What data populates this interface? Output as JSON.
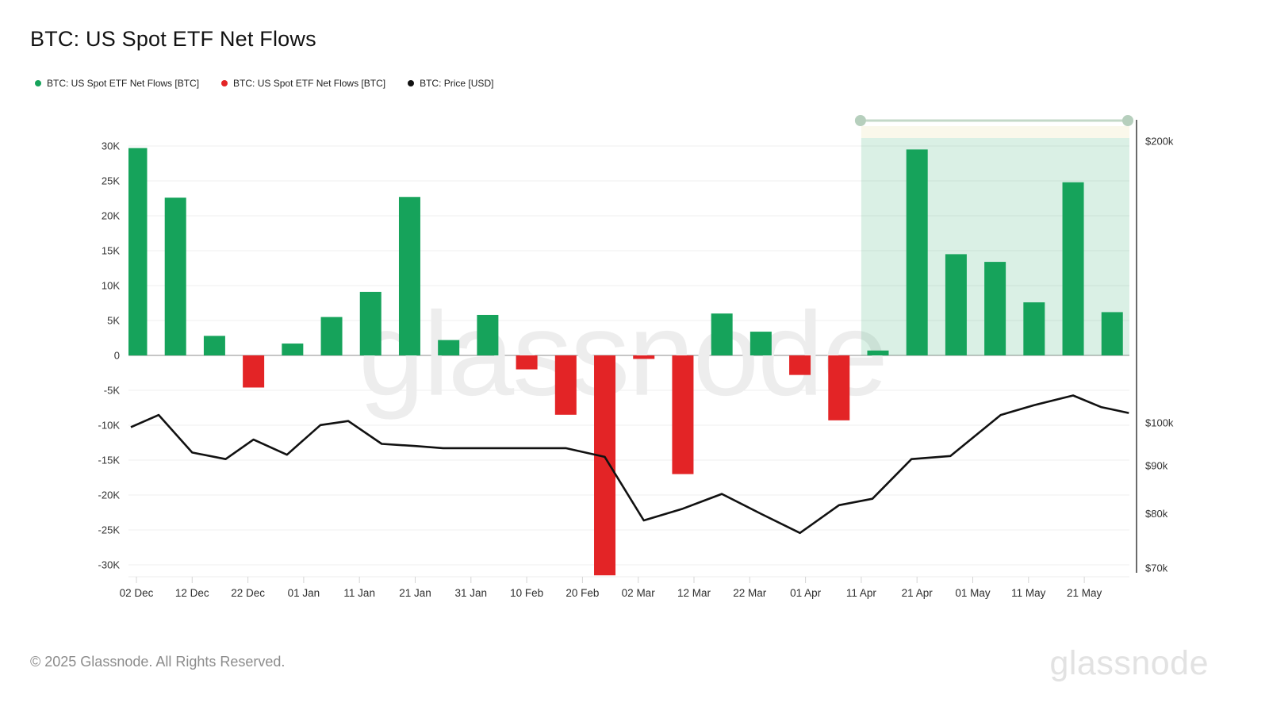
{
  "page": {
    "title": "BTC: US Spot ETF Net Flows",
    "footer": "© 2025 Glassnode. All Rights Reserved.",
    "watermark": "glassnode",
    "brand_logo": "glassnode"
  },
  "legend": {
    "items": [
      {
        "label": "BTC: US Spot ETF Net Flows [BTC]",
        "color": "#16a35b"
      },
      {
        "label": "BTC: US Spot ETF Net Flows [BTC]",
        "color": "#e32426"
      },
      {
        "label": "BTC: Price [USD]",
        "color": "#111111"
      }
    ]
  },
  "chart_data": {
    "type": "bar",
    "title": "BTC: US Spot ETF Net Flows",
    "colors": {
      "positive": "#16a35b",
      "negative": "#e32426",
      "price_line": "#111111",
      "grid": "#efefef",
      "zero_line": "#b3b3b3",
      "axis_text": "#333333",
      "highlight_fill": "#16a35b",
      "slider": "#c3d8c8",
      "slider_handle": "#b6cfbd",
      "cream_band": "#f5f2d8"
    },
    "left_axis": {
      "unit": "BTC",
      "ticks": [
        {
          "v": 30000,
          "label": "30K"
        },
        {
          "v": 25000,
          "label": "25K"
        },
        {
          "v": 20000,
          "label": "20K"
        },
        {
          "v": 15000,
          "label": "15K"
        },
        {
          "v": 10000,
          "label": "10K"
        },
        {
          "v": 5000,
          "label": "5K"
        },
        {
          "v": 0,
          "label": "0"
        },
        {
          "v": -5000,
          "label": "-5K"
        },
        {
          "v": -10000,
          "label": "-10K"
        },
        {
          "v": -15000,
          "label": "-15K"
        },
        {
          "v": -20000,
          "label": "-20K"
        },
        {
          "v": -25000,
          "label": "-25K"
        },
        {
          "v": -30000,
          "label": "-30K"
        }
      ]
    },
    "right_axis": {
      "unit": "USD",
      "scale": "log",
      "ticks": [
        {
          "v": 200,
          "label": "$200k"
        },
        {
          "v": 100,
          "label": "$100k"
        },
        {
          "v": 90,
          "label": "$90k"
        },
        {
          "v": 80,
          "label": "$80k"
        },
        {
          "v": 70,
          "label": "$70k"
        }
      ]
    },
    "x_ticks": [
      {
        "date": "2024-12-02",
        "label": "02 Dec"
      },
      {
        "date": "2024-12-12",
        "label": "12 Dec"
      },
      {
        "date": "2024-12-22",
        "label": "22 Dec"
      },
      {
        "date": "2025-01-01",
        "label": "01 Jan"
      },
      {
        "date": "2025-01-11",
        "label": "11 Jan"
      },
      {
        "date": "2025-01-21",
        "label": "21 Jan"
      },
      {
        "date": "2025-01-31",
        "label": "31 Jan"
      },
      {
        "date": "2025-02-10",
        "label": "10 Feb"
      },
      {
        "date": "2025-02-20",
        "label": "20 Feb"
      },
      {
        "date": "2025-03-02",
        "label": "02 Mar"
      },
      {
        "date": "2025-03-12",
        "label": "12 Mar"
      },
      {
        "date": "2025-03-22",
        "label": "22 Mar"
      },
      {
        "date": "2025-04-01",
        "label": "01 Apr"
      },
      {
        "date": "2025-04-11",
        "label": "11 Apr"
      },
      {
        "date": "2025-04-21",
        "label": "21 Apr"
      },
      {
        "date": "2025-05-01",
        "label": "01 May"
      },
      {
        "date": "2025-05-11",
        "label": "11 May"
      },
      {
        "date": "2025-05-21",
        "label": "21 May"
      }
    ],
    "flows_btc": [
      {
        "date": "2024-12-02",
        "value": 29700
      },
      {
        "date": "2024-12-09",
        "value": 22600
      },
      {
        "date": "2024-12-16",
        "value": 2800
      },
      {
        "date": "2024-12-23",
        "value": -4600
      },
      {
        "date": "2024-12-30",
        "value": 1700
      },
      {
        "date": "2025-01-06",
        "value": 5500
      },
      {
        "date": "2025-01-13",
        "value": 9100
      },
      {
        "date": "2025-01-20",
        "value": 22700
      },
      {
        "date": "2025-01-27",
        "value": 2200
      },
      {
        "date": "2025-02-03",
        "value": 5800
      },
      {
        "date": "2025-02-10",
        "value": -2000
      },
      {
        "date": "2025-02-17",
        "value": -8500
      },
      {
        "date": "2025-02-24",
        "value": -31500
      },
      {
        "date": "2025-03-03",
        "value": -500
      },
      {
        "date": "2025-03-10",
        "value": -17000
      },
      {
        "date": "2025-03-17",
        "value": 6000
      },
      {
        "date": "2025-03-24",
        "value": 3400
      },
      {
        "date": "2025-03-31",
        "value": -2800
      },
      {
        "date": "2025-04-07",
        "value": -9300
      },
      {
        "date": "2025-04-14",
        "value": 700
      },
      {
        "date": "2025-04-21",
        "value": 29500
      },
      {
        "date": "2025-04-28",
        "value": 14500
      },
      {
        "date": "2025-05-05",
        "value": 13400
      },
      {
        "date": "2025-05-12",
        "value": 7600
      },
      {
        "date": "2025-05-19",
        "value": 24800
      },
      {
        "date": "2025-05-26",
        "value": 6200
      }
    ],
    "price_usd_k": [
      {
        "date": "2024-12-01",
        "value": 99
      },
      {
        "date": "2024-12-06",
        "value": 102
      },
      {
        "date": "2024-12-12",
        "value": 93
      },
      {
        "date": "2024-12-18",
        "value": 91.5
      },
      {
        "date": "2024-12-23",
        "value": 96
      },
      {
        "date": "2024-12-29",
        "value": 92.5
      },
      {
        "date": "2025-01-04",
        "value": 99.5
      },
      {
        "date": "2025-01-09",
        "value": 100.5
      },
      {
        "date": "2025-01-15",
        "value": 95
      },
      {
        "date": "2025-01-21",
        "value": 94.5
      },
      {
        "date": "2025-01-26",
        "value": 94
      },
      {
        "date": "2025-02-07",
        "value": 94
      },
      {
        "date": "2025-02-17",
        "value": 94
      },
      {
        "date": "2025-02-24",
        "value": 92
      },
      {
        "date": "2025-03-03",
        "value": 78.7
      },
      {
        "date": "2025-03-10",
        "value": 81
      },
      {
        "date": "2025-03-17",
        "value": 84
      },
      {
        "date": "2025-03-24",
        "value": 80
      },
      {
        "date": "2025-03-31",
        "value": 76.3
      },
      {
        "date": "2025-04-07",
        "value": 81.7
      },
      {
        "date": "2025-04-13",
        "value": 83
      },
      {
        "date": "2025-04-20",
        "value": 91.5
      },
      {
        "date": "2025-04-27",
        "value": 92.2
      },
      {
        "date": "2025-05-06",
        "value": 102
      },
      {
        "date": "2025-05-12",
        "value": 104.5
      },
      {
        "date": "2025-05-19",
        "value": 107
      },
      {
        "date": "2025-05-24",
        "value": 104
      },
      {
        "date": "2025-05-29",
        "value": 102.5
      }
    ],
    "highlight": {
      "start_date": "2025-04-11",
      "end_date": "2025-05-29"
    },
    "layout_hints": {
      "grid": true,
      "legend_position": "top-left",
      "ylim_left": [
        -32000,
        31000
      ],
      "ylim_right_k": [
        70,
        205
      ]
    }
  }
}
